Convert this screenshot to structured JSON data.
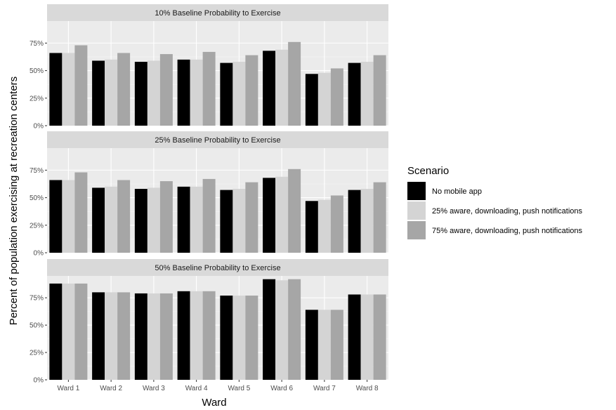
{
  "chart_data": {
    "type": "bar",
    "xlabel": "Ward",
    "ylabel": "Percent of population exercising at recreation centers",
    "categories": [
      "Ward 1",
      "Ward 2",
      "Ward 3",
      "Ward 4",
      "Ward 5",
      "Ward 6",
      "Ward 7",
      "Ward 8"
    ],
    "ylim": [
      0,
      95
    ],
    "yticks": [
      0,
      25,
      50,
      75
    ],
    "ytick_labels": [
      "0%",
      "25%",
      "50%",
      "75%"
    ],
    "grid": true,
    "legend": {
      "title": "Scenario",
      "placement": "right",
      "entries": [
        {
          "label": "No mobile app",
          "color": "#000000"
        },
        {
          "label": "25% aware, downloading, push notifications",
          "color": "#d4d4d4"
        },
        {
          "label": "75% aware, downloading, push notifications",
          "color": "#a6a6a6"
        }
      ]
    },
    "panels": [
      {
        "title": "10% Baseline Probability to Exercise",
        "series": [
          {
            "name": "No mobile app",
            "values": [
              66,
              59,
              58,
              60,
              57,
              68,
              47,
              57
            ]
          },
          {
            "name": "25% aware, downloading, push notifications",
            "values": [
              66,
              60,
              59,
              60,
              58,
              69,
              48,
              58
            ]
          },
          {
            "name": "75% aware, downloading, push notifications",
            "values": [
              73,
              66,
              65,
              67,
              64,
              76,
              52,
              64
            ]
          }
        ]
      },
      {
        "title": "25% Baseline Probability to Exercise",
        "series": [
          {
            "name": "No mobile app",
            "values": [
              66,
              59,
              58,
              60,
              57,
              68,
              47,
              57
            ]
          },
          {
            "name": "25% aware, downloading, push notifications",
            "values": [
              66,
              60,
              59,
              60,
              58,
              69,
              48,
              58
            ]
          },
          {
            "name": "75% aware, downloading, push notifications",
            "values": [
              73,
              66,
              65,
              67,
              64,
              76,
              52,
              64
            ]
          }
        ]
      },
      {
        "title": "50% Baseline Probability to Exercise",
        "series": [
          {
            "name": "No mobile app",
            "values": [
              88,
              80,
              79,
              81,
              77,
              92,
              64,
              78
            ]
          },
          {
            "name": "25% aware, downloading, push notifications",
            "values": [
              88,
              80,
              79,
              81,
              77,
              91,
              64,
              78
            ]
          },
          {
            "name": "75% aware, downloading, push notifications",
            "values": [
              88,
              80,
              79,
              81,
              77,
              92,
              64,
              78
            ]
          }
        ]
      }
    ]
  }
}
